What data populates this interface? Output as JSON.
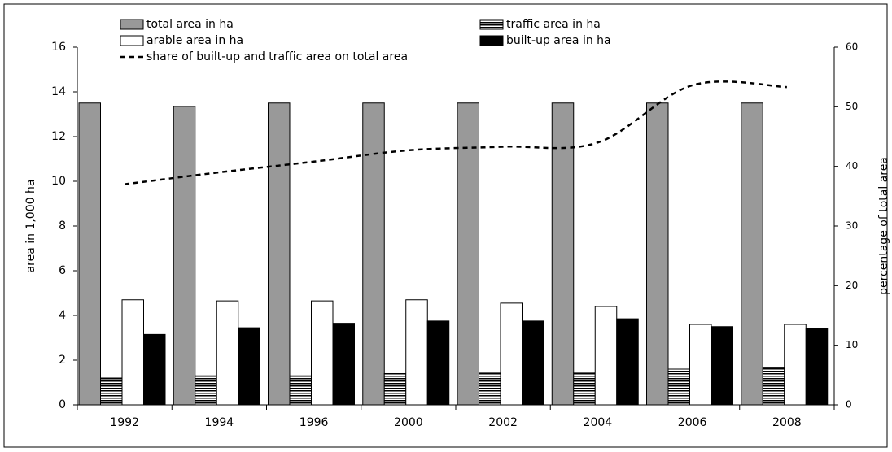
{
  "chart_data": {
    "type": "bar",
    "categories": [
      "1992",
      "1994",
      "1996",
      "2000",
      "2002",
      "2004",
      "2006",
      "2008"
    ],
    "series": [
      {
        "name": "total area in ha",
        "color": "#999999",
        "values": [
          13.5,
          13.35,
          13.5,
          13.5,
          13.5,
          13.5,
          13.5,
          13.5
        ]
      },
      {
        "name": "traffic area in ha",
        "color": "#000000",
        "pattern": "horizontal-lines",
        "values": [
          1.2,
          1.3,
          1.3,
          1.4,
          1.45,
          1.45,
          1.6,
          1.65
        ]
      },
      {
        "name": "arable area in ha",
        "color": "#ffffff",
        "values": [
          4.7,
          4.65,
          4.65,
          4.7,
          4.55,
          4.4,
          3.6,
          3.6
        ]
      },
      {
        "name": "built-up area in ha",
        "color": "#000000",
        "values": [
          3.15,
          3.45,
          3.65,
          3.75,
          3.75,
          3.85,
          3.5,
          3.4
        ]
      },
      {
        "name": "share of built-up and traffic area on total area",
        "type": "line",
        "axis": "y2",
        "color": "#000000",
        "dashed": true,
        "values": [
          37,
          39,
          40.8,
          42.7,
          43.3,
          44,
          53.6,
          53.3
        ]
      }
    ],
    "ylabel": "area in 1,000 ha",
    "y2label": "percentage of total area",
    "ylim": [
      0,
      16
    ],
    "yticks": [
      0,
      2,
      4,
      6,
      8,
      10,
      12,
      14,
      16
    ],
    "y2lim": [
      0,
      60
    ],
    "y2ticks": [
      0,
      10,
      20,
      30,
      40,
      50,
      60
    ]
  }
}
